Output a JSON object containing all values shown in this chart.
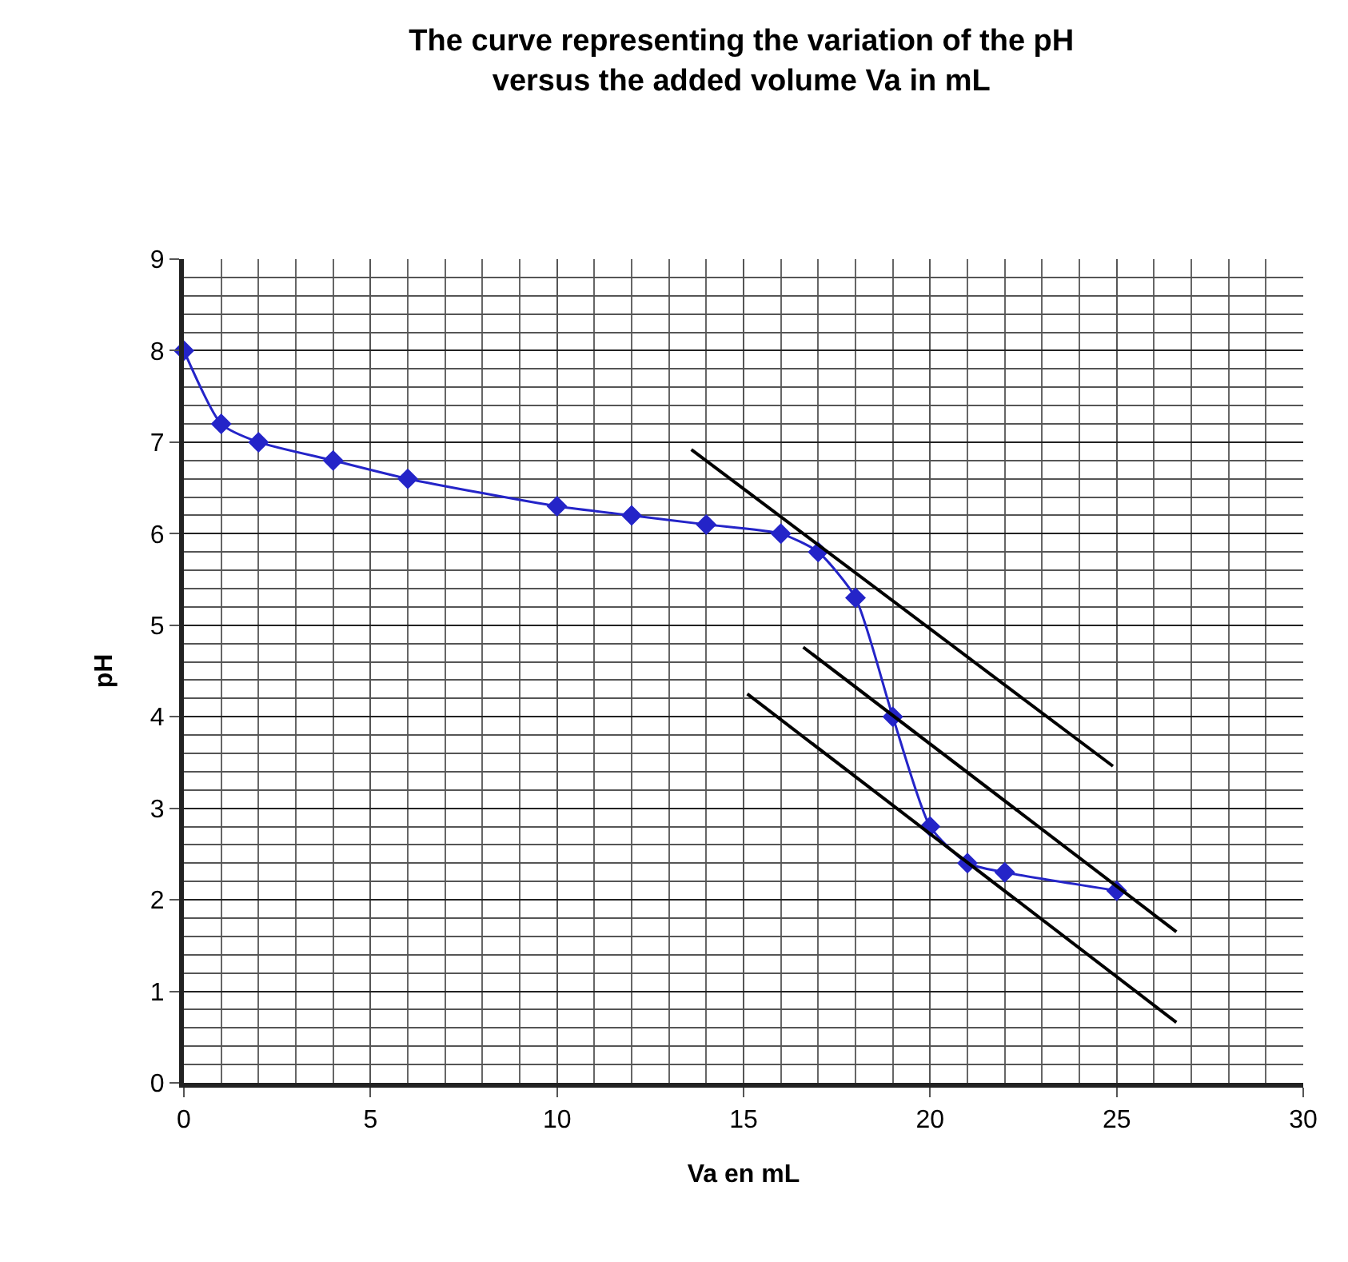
{
  "chart_data": {
    "type": "line",
    "title": "The curve representing the variation of the pH\nversus the added volume Va in mL",
    "xlabel": "Va en mL",
    "ylabel": "pH",
    "xlim": [
      0,
      30
    ],
    "xticks": [
      0,
      5,
      10,
      15,
      20,
      25,
      30
    ],
    "ylim": [
      0,
      9
    ],
    "yticks": [
      0,
      1,
      2,
      3,
      4,
      5,
      6,
      7,
      8,
      9
    ],
    "grid": true,
    "series": [
      {
        "color": "#2424c8",
        "marker": "diamond",
        "x": [
          0,
          1,
          2,
          4,
          6,
          10,
          12,
          14,
          16,
          17,
          18,
          19,
          20,
          21,
          22,
          25
        ],
        "values": [
          8,
          7.2,
          7,
          6.8,
          6.6,
          6.3,
          6.2,
          6.1,
          6,
          5.8,
          5.3,
          4,
          2.8,
          2.4,
          2.3,
          2.1
        ]
      },
      {
        "color": "#000000",
        "marker": "none",
        "x": [
          13.6,
          24.9
        ],
        "values": [
          6.92,
          3.46
        ]
      },
      {
        "color": "#000000",
        "marker": "none",
        "x": [
          16.6,
          26.6
        ],
        "values": [
          4.76,
          1.65
        ]
      },
      {
        "color": "#000000",
        "marker": "none",
        "x": [
          15.1,
          26.6
        ],
        "values": [
          4.25,
          0.66
        ]
      }
    ]
  }
}
